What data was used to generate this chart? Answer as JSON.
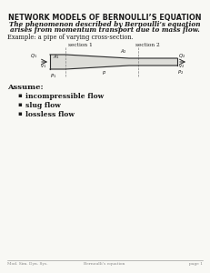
{
  "title": "NETWORK MODELS OF BERNOULLI’S EQUATION",
  "subtitle_line1": "The phenomenon described by Bernoulli’s equation",
  "subtitle_line2": "arises from momentum transport due to mass flow.",
  "example_label": "Example: a pipe of varying cross-section.",
  "section1_label": "section 1",
  "section2_label": "section 2",
  "assume_label": "Assume:",
  "bullets": [
    "incompressible flow",
    "slug flow",
    "lossless flow"
  ],
  "footer_left": "Mod. Sim. Dyn. Sys.",
  "footer_center": "Bernoulli’s equation",
  "footer_right": "page 1",
  "bg_color": "#f8f8f4",
  "text_color": "#1a1a1a",
  "pipe_color": "#2a2a2a"
}
